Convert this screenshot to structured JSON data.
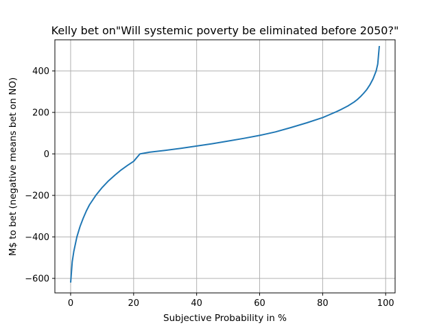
{
  "chart_data": {
    "type": "line",
    "title": "Kelly bet on\"Will systemic poverty be eliminated before 2050?\"",
    "xlabel": "Subjective Probability in %",
    "ylabel": "M$ to bet (negative means bet on NO)",
    "xlim": [
      -5,
      103
    ],
    "ylim": [
      -670,
      550
    ],
    "xticks": [
      0,
      20,
      40,
      60,
      80,
      100
    ],
    "yticks": [
      -600,
      -400,
      -200,
      0,
      200,
      400
    ],
    "xtick_labels": [
      "0",
      "20",
      "40",
      "60",
      "80",
      "100"
    ],
    "ytick_labels": [
      "−600",
      "−400",
      "−200",
      "0",
      "200",
      "400"
    ],
    "grid": true,
    "series": [
      {
        "color": "#1f77b4",
        "x": [
          0,
          0.5,
          1,
          2,
          3,
          4,
          5,
          6,
          8,
          10,
          12,
          14,
          16,
          18,
          20,
          22,
          25,
          30,
          35,
          40,
          45,
          50,
          55,
          60,
          65,
          70,
          75,
          80,
          82,
          84,
          86,
          88,
          90,
          91,
          92,
          93,
          94,
          95,
          96,
          97,
          97.5,
          98
        ],
        "y": [
          -620,
          -520,
          -470,
          -400,
          -350,
          -310,
          -275,
          -245,
          -200,
          -162,
          -130,
          -103,
          -78,
          -56,
          -36,
          0,
          8,
          17,
          27,
          38,
          49,
          62,
          75,
          89,
          106,
          127,
          150,
          175,
          188,
          201,
          215,
          231,
          250,
          262,
          276,
          292,
          310,
          333,
          362,
          400,
          433,
          520
        ]
      }
    ]
  }
}
